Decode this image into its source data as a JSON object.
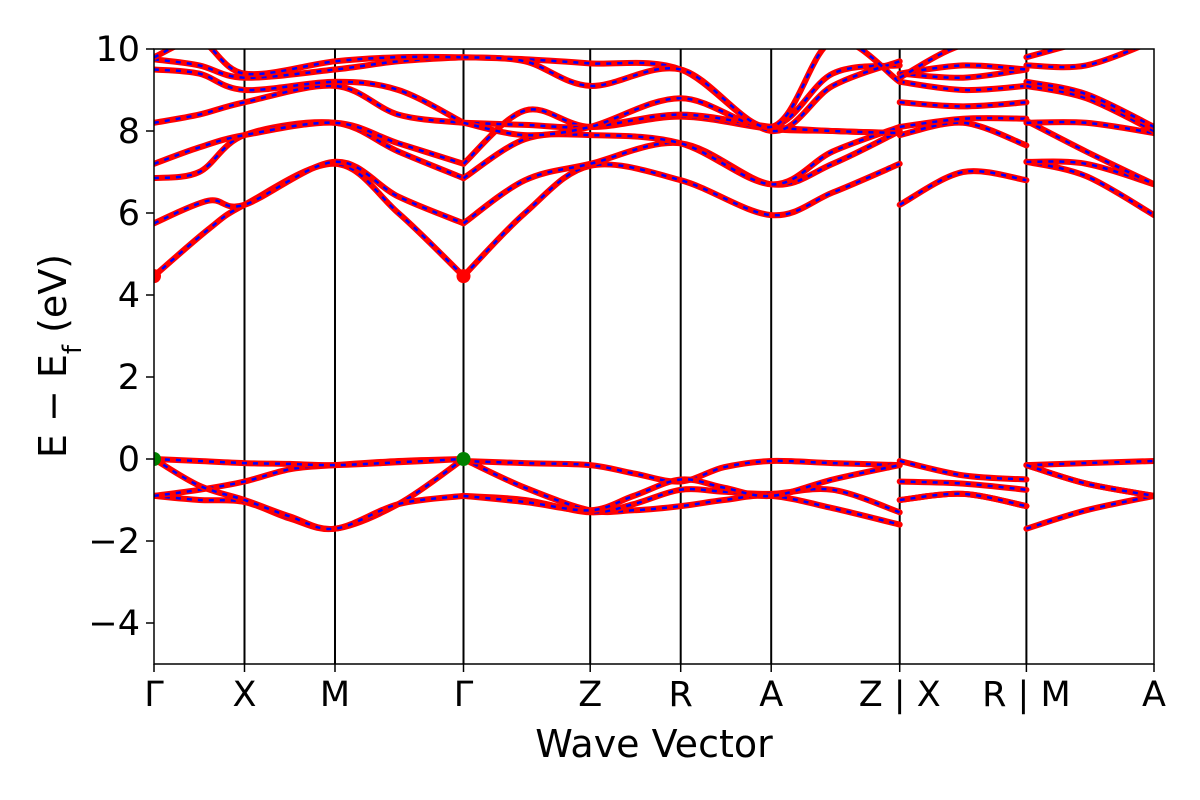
{
  "chart_data": {
    "type": "line",
    "title": "",
    "xlabel": "Wave Vector",
    "ylabel_main": "E − E",
    "ylabel_sub": "f",
    "ylabel_unit": " (eV)",
    "ylim": [
      -5,
      10
    ],
    "yticks": [
      -4,
      -2,
      0,
      2,
      4,
      6,
      8,
      10
    ],
    "ytick_labels": [
      "−4",
      "−2",
      "0",
      "2",
      "4",
      "6",
      "8",
      "10"
    ],
    "grid": false,
    "legend": "none",
    "kpoint_positions": [
      0,
      1,
      2,
      3.42,
      4.82,
      5.82,
      6.82,
      8.24,
      9.64,
      11.05
    ],
    "kpoint_labels": [
      "Γ",
      "X",
      "M",
      "Γ",
      "Z",
      "R",
      "A",
      "Z | X",
      "R | M",
      "A"
    ],
    "colors": {
      "dft": "#0000ff",
      "wannier": "#ff0000",
      "cbm": "#ff0000",
      "vbm": "#008000"
    },
    "cbm_points": [
      [
        0,
        4.46
      ],
      [
        3.42,
        4.46
      ]
    ],
    "vbm_points": [
      [
        0,
        0.0
      ],
      [
        3.42,
        0.0
      ]
    ],
    "bands": [
      {
        "name": "v1",
        "segments": [
          [
            [
              0,
              -0.9
            ],
            [
              0.5,
              -1.0
            ],
            [
              1,
              -1.05
            ],
            [
              1.5,
              -1.45
            ],
            [
              2,
              -1.7
            ],
            [
              2.7,
              -1.1
            ],
            [
              3.42,
              0.0
            ]
          ],
          [
            [
              3.42,
              0.0
            ],
            [
              4.1,
              -0.7
            ],
            [
              4.82,
              -1.25
            ],
            [
              5.3,
              -1.25
            ],
            [
              5.82,
              -1.15
            ],
            [
              6.3,
              -1.0
            ],
            [
              6.82,
              -0.9
            ],
            [
              7.5,
              -1.2
            ],
            [
              8.24,
              -1.6
            ]
          ],
          [
            [
              8.24,
              -1.0
            ],
            [
              8.94,
              -0.85
            ],
            [
              9.64,
              -1.15
            ]
          ],
          [
            [
              9.64,
              -1.7
            ],
            [
              10.3,
              -1.25
            ],
            [
              11.05,
              -0.9
            ]
          ]
        ]
      },
      {
        "name": "v2",
        "segments": [
          [
            [
              0,
              -0.9
            ],
            [
              0.5,
              -0.75
            ],
            [
              1,
              -0.55
            ],
            [
              1.5,
              -0.25
            ],
            [
              2,
              -0.15
            ],
            [
              2.7,
              -0.05
            ],
            [
              3.42,
              0.0
            ]
          ],
          [
            [
              3.42,
              -0.9
            ],
            [
              4.1,
              -1.0
            ],
            [
              4.82,
              -1.3
            ],
            [
              5.3,
              -1.1
            ],
            [
              5.82,
              -0.75
            ],
            [
              6.3,
              -0.8
            ],
            [
              6.82,
              -0.85
            ],
            [
              7.5,
              -0.75
            ],
            [
              8.24,
              -1.3
            ]
          ],
          [
            [
              8.24,
              -0.55
            ],
            [
              8.94,
              -0.6
            ],
            [
              9.64,
              -0.75
            ]
          ],
          [
            [
              9.64,
              -0.15
            ],
            [
              10.3,
              -0.6
            ],
            [
              11.05,
              -0.9
            ]
          ]
        ]
      },
      {
        "name": "v3",
        "segments": [
          [
            [
              0,
              0.0
            ],
            [
              0.5,
              -0.65
            ],
            [
              1,
              -1.0
            ],
            [
              1.5,
              -1.4
            ],
            [
              2,
              -1.7
            ],
            [
              2.7,
              -1.1
            ],
            [
              3.42,
              -0.9
            ]
          ],
          [
            [
              3.42,
              -0.05
            ],
            [
              4.1,
              -0.1
            ],
            [
              4.82,
              -0.15
            ],
            [
              5.3,
              -0.35
            ],
            [
              5.82,
              -0.55
            ],
            [
              6.3,
              -0.2
            ],
            [
              6.82,
              -0.05
            ],
            [
              7.5,
              -0.1
            ],
            [
              8.24,
              -0.15
            ]
          ],
          [
            [
              8.24,
              -0.05
            ],
            [
              8.94,
              -0.4
            ],
            [
              9.64,
              -0.5
            ]
          ],
          [
            [
              9.64,
              -0.15
            ],
            [
              10.3,
              -0.1
            ],
            [
              11.05,
              -0.05
            ]
          ]
        ]
      },
      {
        "name": "v4",
        "segments": [
          [
            [
              0,
              0.0
            ],
            [
              0.5,
              -0.05
            ],
            [
              1,
              -0.1
            ],
            [
              1.5,
              -0.12
            ],
            [
              2,
              -0.15
            ],
            [
              2.7,
              -0.08
            ],
            [
              3.42,
              0.0
            ]
          ],
          [
            [
              3.42,
              -0.9
            ],
            [
              4.1,
              -1.05
            ],
            [
              4.82,
              -1.25
            ],
            [
              5.3,
              -0.9
            ],
            [
              5.82,
              -0.5
            ],
            [
              6.3,
              -0.7
            ],
            [
              6.82,
              -0.9
            ],
            [
              7.5,
              -0.5
            ],
            [
              8.24,
              -0.15
            ]
          ],
          [
            [
              8.24,
              -1.0
            ],
            [
              8.94,
              -0.85
            ],
            [
              9.64,
              -1.15
            ]
          ],
          [
            [
              9.64,
              -0.15
            ],
            [
              10.3,
              -0.6
            ],
            [
              11.05,
              -0.9
            ]
          ]
        ]
      },
      {
        "name": "c1",
        "segments": [
          [
            [
              0,
              4.46
            ],
            [
              0.6,
              5.6
            ],
            [
              1,
              6.2
            ],
            [
              2,
              7.2
            ],
            [
              2.7,
              6.0
            ],
            [
              3.42,
              4.46
            ]
          ],
          [
            [
              3.42,
              4.46
            ],
            [
              4.1,
              6.0
            ],
            [
              4.82,
              7.15
            ],
            [
              5.82,
              6.8
            ],
            [
              6.82,
              5.95
            ],
            [
              7.5,
              6.5
            ],
            [
              8.24,
              7.2
            ]
          ],
          [
            [
              8.24,
              6.2
            ],
            [
              8.94,
              7.0
            ],
            [
              9.64,
              6.8
            ]
          ],
          [
            [
              9.64,
              7.25
            ],
            [
              10.3,
              6.9
            ],
            [
              11.05,
              5.95
            ]
          ]
        ]
      },
      {
        "name": "c2",
        "segments": [
          [
            [
              0,
              5.75
            ],
            [
              0.6,
              6.3
            ],
            [
              1,
              6.2
            ],
            [
              2,
              7.25
            ],
            [
              2.7,
              6.4
            ],
            [
              3.42,
              5.75
            ]
          ],
          [
            [
              3.42,
              5.75
            ],
            [
              4.1,
              6.8
            ],
            [
              4.82,
              7.2
            ],
            [
              5.82,
              7.7
            ],
            [
              6.82,
              6.7
            ],
            [
              7.5,
              7.2
            ],
            [
              8.24,
              8.0
            ]
          ],
          [
            [
              8.24,
              7.9
            ],
            [
              8.94,
              8.2
            ],
            [
              9.64,
              7.65
            ]
          ],
          [
            [
              9.64,
              7.25
            ],
            [
              10.3,
              7.2
            ],
            [
              11.05,
              6.7
            ]
          ]
        ]
      },
      {
        "name": "c3",
        "segments": [
          [
            [
              0,
              6.85
            ],
            [
              0.5,
              7.0
            ],
            [
              1,
              7.9
            ],
            [
              2,
              8.2
            ],
            [
              2.7,
              7.5
            ],
            [
              3.42,
              6.85
            ]
          ],
          [
            [
              3.42,
              6.85
            ],
            [
              4.1,
              7.8
            ],
            [
              4.82,
              7.9
            ],
            [
              5.82,
              7.7
            ],
            [
              6.82,
              6.7
            ],
            [
              7.5,
              7.5
            ],
            [
              8.24,
              8.1
            ]
          ],
          [
            [
              8.24,
              8.1
            ],
            [
              8.94,
              8.3
            ],
            [
              9.64,
              8.3
            ]
          ],
          [
            [
              9.64,
              8.25
            ],
            [
              10.3,
              7.5
            ],
            [
              11.05,
              6.7
            ]
          ]
        ]
      },
      {
        "name": "c4",
        "segments": [
          [
            [
              0,
              7.2
            ],
            [
              0.5,
              7.6
            ],
            [
              1,
              7.9
            ],
            [
              2,
              8.2
            ],
            [
              2.7,
              7.7
            ],
            [
              3.42,
              7.2
            ]
          ],
          [
            [
              3.42,
              7.2
            ],
            [
              4.1,
              8.5
            ],
            [
              4.82,
              8.1
            ],
            [
              5.82,
              8.35
            ],
            [
              6.82,
              8.05
            ],
            [
              7.5,
              8.0
            ],
            [
              8.24,
              7.95
            ]
          ],
          [
            [
              8.24,
              8.7
            ],
            [
              8.94,
              8.6
            ],
            [
              9.64,
              8.7
            ]
          ],
          [
            [
              9.64,
              8.2
            ],
            [
              10.3,
              8.2
            ],
            [
              11.05,
              7.95
            ]
          ]
        ]
      },
      {
        "name": "c5",
        "segments": [
          [
            [
              0,
              8.2
            ],
            [
              0.5,
              8.4
            ],
            [
              1,
              8.7
            ],
            [
              2,
              9.1
            ],
            [
              2.7,
              8.4
            ],
            [
              3.42,
              8.2
            ]
          ],
          [
            [
              3.42,
              8.2
            ],
            [
              4.1,
              8.15
            ],
            [
              4.82,
              8.1
            ],
            [
              5.82,
              8.4
            ],
            [
              6.82,
              8.1
            ],
            [
              7.5,
              8.0
            ],
            [
              8.24,
              7.95
            ]
          ],
          [
            [
              8.24,
              9.2
            ],
            [
              8.94,
              9.0
            ],
            [
              9.64,
              9.1
            ]
          ],
          [
            [
              9.64,
              9.1
            ],
            [
              10.3,
              8.8
            ],
            [
              11.05,
              8.0
            ]
          ]
        ]
      },
      {
        "name": "c6",
        "segments": [
          [
            [
              0,
              9.5
            ],
            [
              0.5,
              9.4
            ],
            [
              1,
              9.0
            ],
            [
              2,
              9.2
            ],
            [
              2.7,
              9.0
            ],
            [
              3.42,
              8.2
            ]
          ],
          [
            [
              3.42,
              8.2
            ],
            [
              4.1,
              7.9
            ],
            [
              4.82,
              8.1
            ],
            [
              5.82,
              8.8
            ],
            [
              6.82,
              8.1
            ],
            [
              7.5,
              9.4
            ],
            [
              8.24,
              9.6
            ]
          ],
          [
            [
              8.24,
              9.4
            ],
            [
              8.94,
              9.3
            ],
            [
              9.64,
              9.5
            ]
          ],
          [
            [
              9.64,
              9.2
            ],
            [
              10.3,
              8.9
            ],
            [
              11.05,
              8.1
            ]
          ]
        ]
      },
      {
        "name": "c7",
        "segments": [
          [
            [
              0,
              9.75
            ],
            [
              0.5,
              9.6
            ],
            [
              1,
              9.3
            ],
            [
              2,
              9.5
            ],
            [
              2.7,
              9.7
            ],
            [
              3.42,
              9.8
            ]
          ],
          [
            [
              3.42,
              9.8
            ],
            [
              4.1,
              9.75
            ],
            [
              4.82,
              9.65
            ],
            [
              5.82,
              9.5
            ],
            [
              6.82,
              8.0
            ],
            [
              7.5,
              9.1
            ],
            [
              8.24,
              9.7
            ]
          ],
          [
            [
              8.24,
              9.4
            ],
            [
              8.94,
              9.6
            ],
            [
              9.64,
              9.5
            ]
          ],
          [
            [
              9.64,
              9.6
            ],
            [
              10.3,
              9.6
            ],
            [
              11.05,
              10.2
            ]
          ]
        ]
      },
      {
        "name": "c8",
        "segments": [
          [
            [
              0,
              9.8
            ],
            [
              0.5,
              10.2
            ],
            [
              1,
              9.4
            ],
            [
              2,
              9.7
            ],
            [
              2.7,
              9.8
            ],
            [
              3.42,
              9.8
            ]
          ],
          [
            [
              3.42,
              9.8
            ],
            [
              4.1,
              9.7
            ],
            [
              4.82,
              9.1
            ],
            [
              5.82,
              9.5
            ],
            [
              6.82,
              8.1
            ],
            [
              7.5,
              10.2
            ],
            [
              8.24,
              9.2
            ]
          ],
          [
            [
              8.24,
              9.3
            ],
            [
              8.94,
              10.1
            ],
            [
              9.64,
              10.1
            ]
          ],
          [
            [
              9.64,
              9.8
            ],
            [
              10.3,
              10.2
            ]
          ]
        ]
      }
    ]
  }
}
